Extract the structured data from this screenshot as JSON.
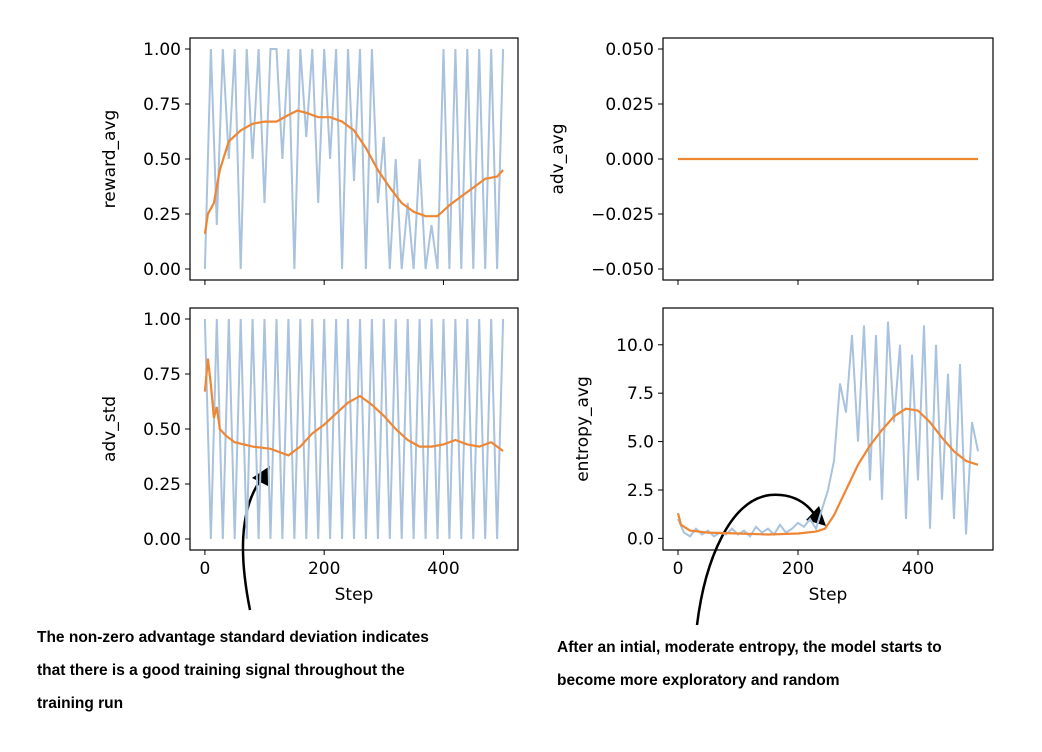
{
  "chart_data": [
    {
      "type": "line",
      "ylabel": "reward_avg",
      "xlim": [
        -25,
        525
      ],
      "ylim": [
        -0.05,
        1.05
      ],
      "xticks": [
        0,
        200,
        400
      ],
      "show_xticklabels": false,
      "yticks": [
        {
          "value": 0,
          "label": "0.00"
        },
        {
          "value": 0.25,
          "label": "0.25"
        },
        {
          "value": 0.5,
          "label": "0.50"
        },
        {
          "value": 0.75,
          "label": "0.75"
        },
        {
          "value": 1,
          "label": "1.00"
        }
      ],
      "series": [
        {
          "color": "#a9c2dd",
          "x": [
            0,
            10,
            20,
            30,
            40,
            50,
            60,
            70,
            80,
            90,
            100,
            110,
            120,
            130,
            140,
            150,
            160,
            170,
            180,
            190,
            200,
            210,
            220,
            230,
            240,
            250,
            260,
            270,
            280,
            290,
            300,
            310,
            320,
            330,
            340,
            350,
            360,
            370,
            380,
            390,
            400,
            410,
            420,
            430,
            440,
            450,
            460,
            470,
            480,
            490,
            500
          ],
          "values": [
            0,
            1,
            0.2,
            1,
            0.5,
            1,
            0,
            1,
            0.5,
            1,
            0.3,
            1,
            1,
            0.5,
            1,
            0,
            1,
            0.6,
            1,
            0.3,
            1,
            0.5,
            1,
            0,
            1,
            0.4,
            1,
            0,
            1,
            0.3,
            0.6,
            0,
            0.5,
            0,
            0.3,
            0,
            0.5,
            0,
            0.2,
            0,
            1,
            0,
            1,
            0,
            1,
            0,
            1,
            0,
            1,
            0,
            1
          ]
        },
        {
          "color": "#ee8633",
          "x": [
            0,
            5,
            15,
            25,
            40,
            60,
            80,
            100,
            120,
            140,
            155,
            170,
            190,
            210,
            230,
            250,
            270,
            290,
            310,
            330,
            350,
            370,
            390,
            410,
            430,
            450,
            470,
            490,
            500
          ],
          "values": [
            0.16,
            0.25,
            0.3,
            0.45,
            0.58,
            0.63,
            0.66,
            0.67,
            0.67,
            0.7,
            0.72,
            0.71,
            0.69,
            0.69,
            0.67,
            0.63,
            0.55,
            0.45,
            0.37,
            0.3,
            0.26,
            0.24,
            0.24,
            0.29,
            0.33,
            0.37,
            0.41,
            0.42,
            0.45
          ]
        }
      ]
    },
    {
      "type": "line",
      "ylabel": "adv_avg",
      "xlim": [
        -25,
        525
      ],
      "ylim": [
        -0.055,
        0.055
      ],
      "xticks": [
        0,
        200,
        400
      ],
      "show_xticklabels": false,
      "yticks": [
        {
          "value": -0.05,
          "label": "−0.050"
        },
        {
          "value": -0.025,
          "label": "−0.025"
        },
        {
          "value": 0,
          "label": "0.000"
        },
        {
          "value": 0.025,
          "label": "0.025"
        },
        {
          "value": 0.05,
          "label": "0.050"
        }
      ],
      "series": [
        {
          "color": "#ee8633",
          "x": [
            0,
            500
          ],
          "values": [
            0,
            0
          ]
        }
      ]
    },
    {
      "type": "line",
      "ylabel": "adv_std",
      "xlabel": "Step",
      "xlim": [
        -25,
        525
      ],
      "ylim": [
        -0.05,
        1.05
      ],
      "xticks": [
        0,
        200,
        400
      ],
      "show_xticklabels": true,
      "yticks": [
        {
          "value": 0,
          "label": "0.00"
        },
        {
          "value": 0.25,
          "label": "0.25"
        },
        {
          "value": 0.5,
          "label": "0.50"
        },
        {
          "value": 0.75,
          "label": "0.75"
        },
        {
          "value": 1,
          "label": "1.00"
        }
      ],
      "series": [
        {
          "color": "#a9c2dd",
          "x": [
            0,
            10,
            20,
            30,
            40,
            50,
            60,
            70,
            80,
            90,
            100,
            110,
            120,
            130,
            140,
            150,
            160,
            170,
            180,
            190,
            200,
            210,
            220,
            230,
            240,
            250,
            260,
            270,
            280,
            290,
            300,
            310,
            320,
            330,
            340,
            350,
            360,
            370,
            380,
            390,
            400,
            410,
            420,
            430,
            440,
            450,
            460,
            470,
            480,
            490,
            500
          ],
          "values": [
            1,
            0,
            1,
            0,
            1,
            0,
            1,
            0,
            1,
            0,
            1,
            0,
            1,
            0,
            1,
            0,
            1,
            0,
            1,
            0,
            1,
            0,
            1,
            0,
            1,
            0,
            1,
            0,
            1,
            0,
            1,
            0,
            1,
            0,
            1,
            0,
            1,
            0,
            1,
            0,
            1,
            0,
            1,
            0,
            1,
            0,
            1,
            0,
            1,
            0,
            1
          ]
        },
        {
          "color": "#ee8633",
          "x": [
            0,
            5,
            10,
            15,
            20,
            25,
            35,
            50,
            80,
            110,
            140,
            160,
            180,
            200,
            220,
            240,
            260,
            280,
            300,
            320,
            340,
            360,
            380,
            400,
            420,
            440,
            460,
            480,
            500
          ],
          "values": [
            0.67,
            0.82,
            0.7,
            0.55,
            0.6,
            0.5,
            0.47,
            0.44,
            0.42,
            0.41,
            0.38,
            0.42,
            0.48,
            0.52,
            0.57,
            0.62,
            0.65,
            0.61,
            0.56,
            0.5,
            0.45,
            0.42,
            0.42,
            0.43,
            0.45,
            0.43,
            0.42,
            0.44,
            0.4
          ]
        }
      ]
    },
    {
      "type": "line",
      "ylabel": "entropy_avg",
      "xlabel": "Step",
      "xlim": [
        -25,
        525
      ],
      "ylim": [
        -0.6,
        11.9
      ],
      "xticks": [
        0,
        200,
        400
      ],
      "show_xticklabels": true,
      "yticks": [
        {
          "value": 0,
          "label": "0.0"
        },
        2.5,
        {
          "value": 5,
          "label": "5.0"
        },
        7.5,
        {
          "value": 10,
          "label": "10.0"
        }
      ],
      "series": [
        {
          "color": "#a9c2dd",
          "x": [
            0,
            10,
            20,
            30,
            40,
            50,
            60,
            70,
            80,
            90,
            100,
            110,
            120,
            130,
            140,
            150,
            160,
            170,
            180,
            190,
            200,
            210,
            220,
            230,
            240,
            250,
            260,
            270,
            280,
            290,
            300,
            310,
            320,
            330,
            340,
            350,
            360,
            370,
            380,
            390,
            400,
            410,
            420,
            430,
            440,
            450,
            460,
            470,
            480,
            490,
            500
          ],
          "values": [
            1.0,
            0.3,
            0.1,
            0.5,
            0.2,
            0.4,
            0.1,
            0.3,
            0.2,
            0.5,
            0.2,
            0.4,
            0.1,
            0.6,
            0.3,
            0.5,
            0.2,
            0.7,
            0.3,
            0.5,
            0.8,
            0.6,
            1.0,
            0.5,
            1.5,
            2.5,
            4.0,
            8.0,
            6.5,
            10.5,
            5.0,
            11.0,
            3.0,
            10.5,
            2.0,
            11.2,
            6.0,
            10.0,
            1.0,
            9.5,
            3.0,
            11.0,
            0.5,
            10.0,
            2.0,
            8.5,
            1.0,
            9.0,
            0.2,
            6.0,
            4.5
          ]
        },
        {
          "color": "#ee8633",
          "x": [
            0,
            5,
            20,
            50,
            100,
            150,
            200,
            230,
            245,
            260,
            280,
            300,
            320,
            340,
            360,
            380,
            400,
            420,
            440,
            460,
            480,
            500
          ],
          "values": [
            1.3,
            0.7,
            0.4,
            0.3,
            0.25,
            0.2,
            0.25,
            0.35,
            0.5,
            1.2,
            2.5,
            3.8,
            4.8,
            5.6,
            6.3,
            6.7,
            6.6,
            6.0,
            5.2,
            4.5,
            4.0,
            3.8
          ]
        }
      ]
    }
  ],
  "annotations": [
    {
      "lines": [
        "The non-zero advantage standard deviation indicates",
        "that there is a good training signal throughout the",
        "training run"
      ]
    },
    {
      "lines": [
        "After an intial, moderate entropy, the model starts to",
        "become more exploratory and random"
      ]
    }
  ]
}
